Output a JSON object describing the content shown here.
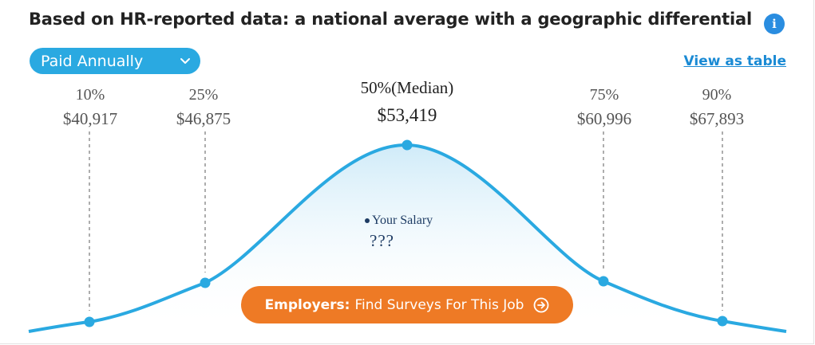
{
  "header": {
    "title": "Based on HR-reported data: a national average with a geographic differential",
    "info_icon": "info-icon"
  },
  "controls": {
    "pay_period": "Paid Annually",
    "pay_period_icon": "chevron-down-icon",
    "view_as_table": "View as table"
  },
  "percentiles": [
    {
      "label": "10%",
      "value": "$40,917"
    },
    {
      "label": "25%",
      "value": "$46,875"
    },
    {
      "label": "50%(Median)",
      "value": "$53,419"
    },
    {
      "label": "75%",
      "value": "$60,996"
    },
    {
      "label": "90%",
      "value": "$67,893"
    }
  ],
  "your_salary": {
    "label": "Your Salary",
    "value": "???"
  },
  "cta": {
    "bold": "Employers:",
    "text": "Find Surveys For This Job",
    "icon": "arrow-right-circle-icon"
  },
  "colors": {
    "curve": "#2aa9e1",
    "cta": "#ee7a25",
    "link": "#1a8ad4",
    "info": "#2a8de0"
  }
}
